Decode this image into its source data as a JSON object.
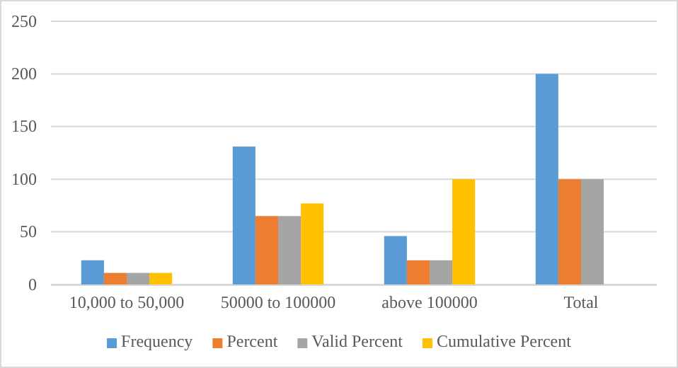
{
  "chart_data": {
    "type": "bar",
    "categories": [
      "10,000 to 50,000",
      "50000 to 100000",
      "above 100000",
      "Total"
    ],
    "series": [
      {
        "name": "Frequency",
        "color": "#5b9bd5",
        "values": [
          23,
          131,
          46,
          200
        ]
      },
      {
        "name": "Percent",
        "color": "#ed7d31",
        "values": [
          11,
          65,
          23,
          100
        ]
      },
      {
        "name": "Valid Percent",
        "color": "#a5a5a5",
        "values": [
          11,
          65,
          23,
          100
        ]
      },
      {
        "name": "Cumulative Percent",
        "color": "#ffc000",
        "values": [
          11,
          77,
          100,
          null
        ]
      }
    ],
    "ylim": [
      0,
      250
    ],
    "yticks": [
      0,
      50,
      100,
      150,
      200,
      250
    ],
    "grid": "y",
    "legend": "bottom"
  }
}
